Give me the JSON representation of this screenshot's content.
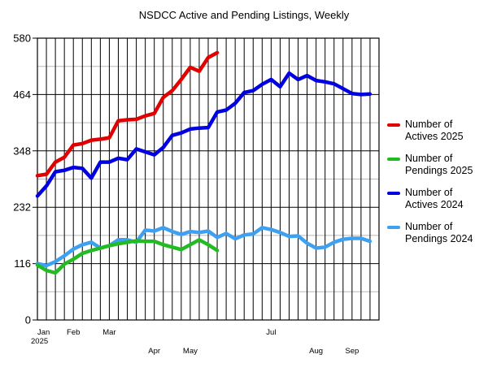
{
  "chart_data": {
    "type": "line",
    "title": "NSDCC Active and Pending Listings, Weekly",
    "xlabel": "",
    "ylabel": "",
    "ylim": [
      0,
      580
    ],
    "y_ticks": [
      0,
      116,
      232,
      348,
      464,
      580
    ],
    "grid": true,
    "legend_position": "right",
    "x_tick_labels": [
      {
        "week": 0,
        "label": "Jan",
        "sub": "2025"
      },
      {
        "week": 4,
        "label": "Feb"
      },
      {
        "week": 8,
        "label": "Mar"
      },
      {
        "week": 13,
        "label": "Apr"
      },
      {
        "week": 17,
        "label": "May"
      },
      {
        "week": 26,
        "label": "Jul"
      },
      {
        "week": 31,
        "label": "Aug"
      },
      {
        "week": 35,
        "label": "Sep"
      }
    ],
    "series": [
      {
        "name": "Number of Actives 2025",
        "color": "#e00000",
        "values": [
          297,
          300,
          325,
          335,
          360,
          363,
          370,
          372,
          375,
          410,
          412,
          413,
          420,
          425,
          458,
          472,
          495,
          520,
          512,
          540,
          550
        ]
      },
      {
        "name": "Number of Pendings 2025",
        "color": "#22bb22",
        "values": [
          113,
          102,
          97,
          115,
          125,
          137,
          143,
          148,
          153,
          157,
          160,
          163,
          162,
          162,
          155,
          150,
          145,
          155,
          165,
          155,
          143
        ]
      },
      {
        "name": "Number of Actives 2024",
        "color": "#0000e0",
        "values": [
          255,
          276,
          305,
          308,
          314,
          312,
          292,
          325,
          325,
          333,
          330,
          352,
          346,
          340,
          355,
          380,
          385,
          393,
          395,
          396,
          428,
          432,
          446,
          468,
          472,
          485,
          495,
          480,
          508,
          495,
          503,
          493,
          490,
          486,
          476,
          466,
          464,
          465
        ]
      },
      {
        "name": "Number of Pendings 2024",
        "color": "#3ea0f0",
        "values": [
          116,
          112,
          120,
          132,
          146,
          155,
          160,
          148,
          153,
          165,
          165,
          160,
          185,
          183,
          190,
          182,
          176,
          182,
          180,
          183,
          170,
          178,
          167,
          175,
          177,
          190,
          186,
          180,
          172,
          173,
          158,
          148,
          150,
          160,
          166,
          168,
          168,
          162
        ]
      }
    ]
  }
}
